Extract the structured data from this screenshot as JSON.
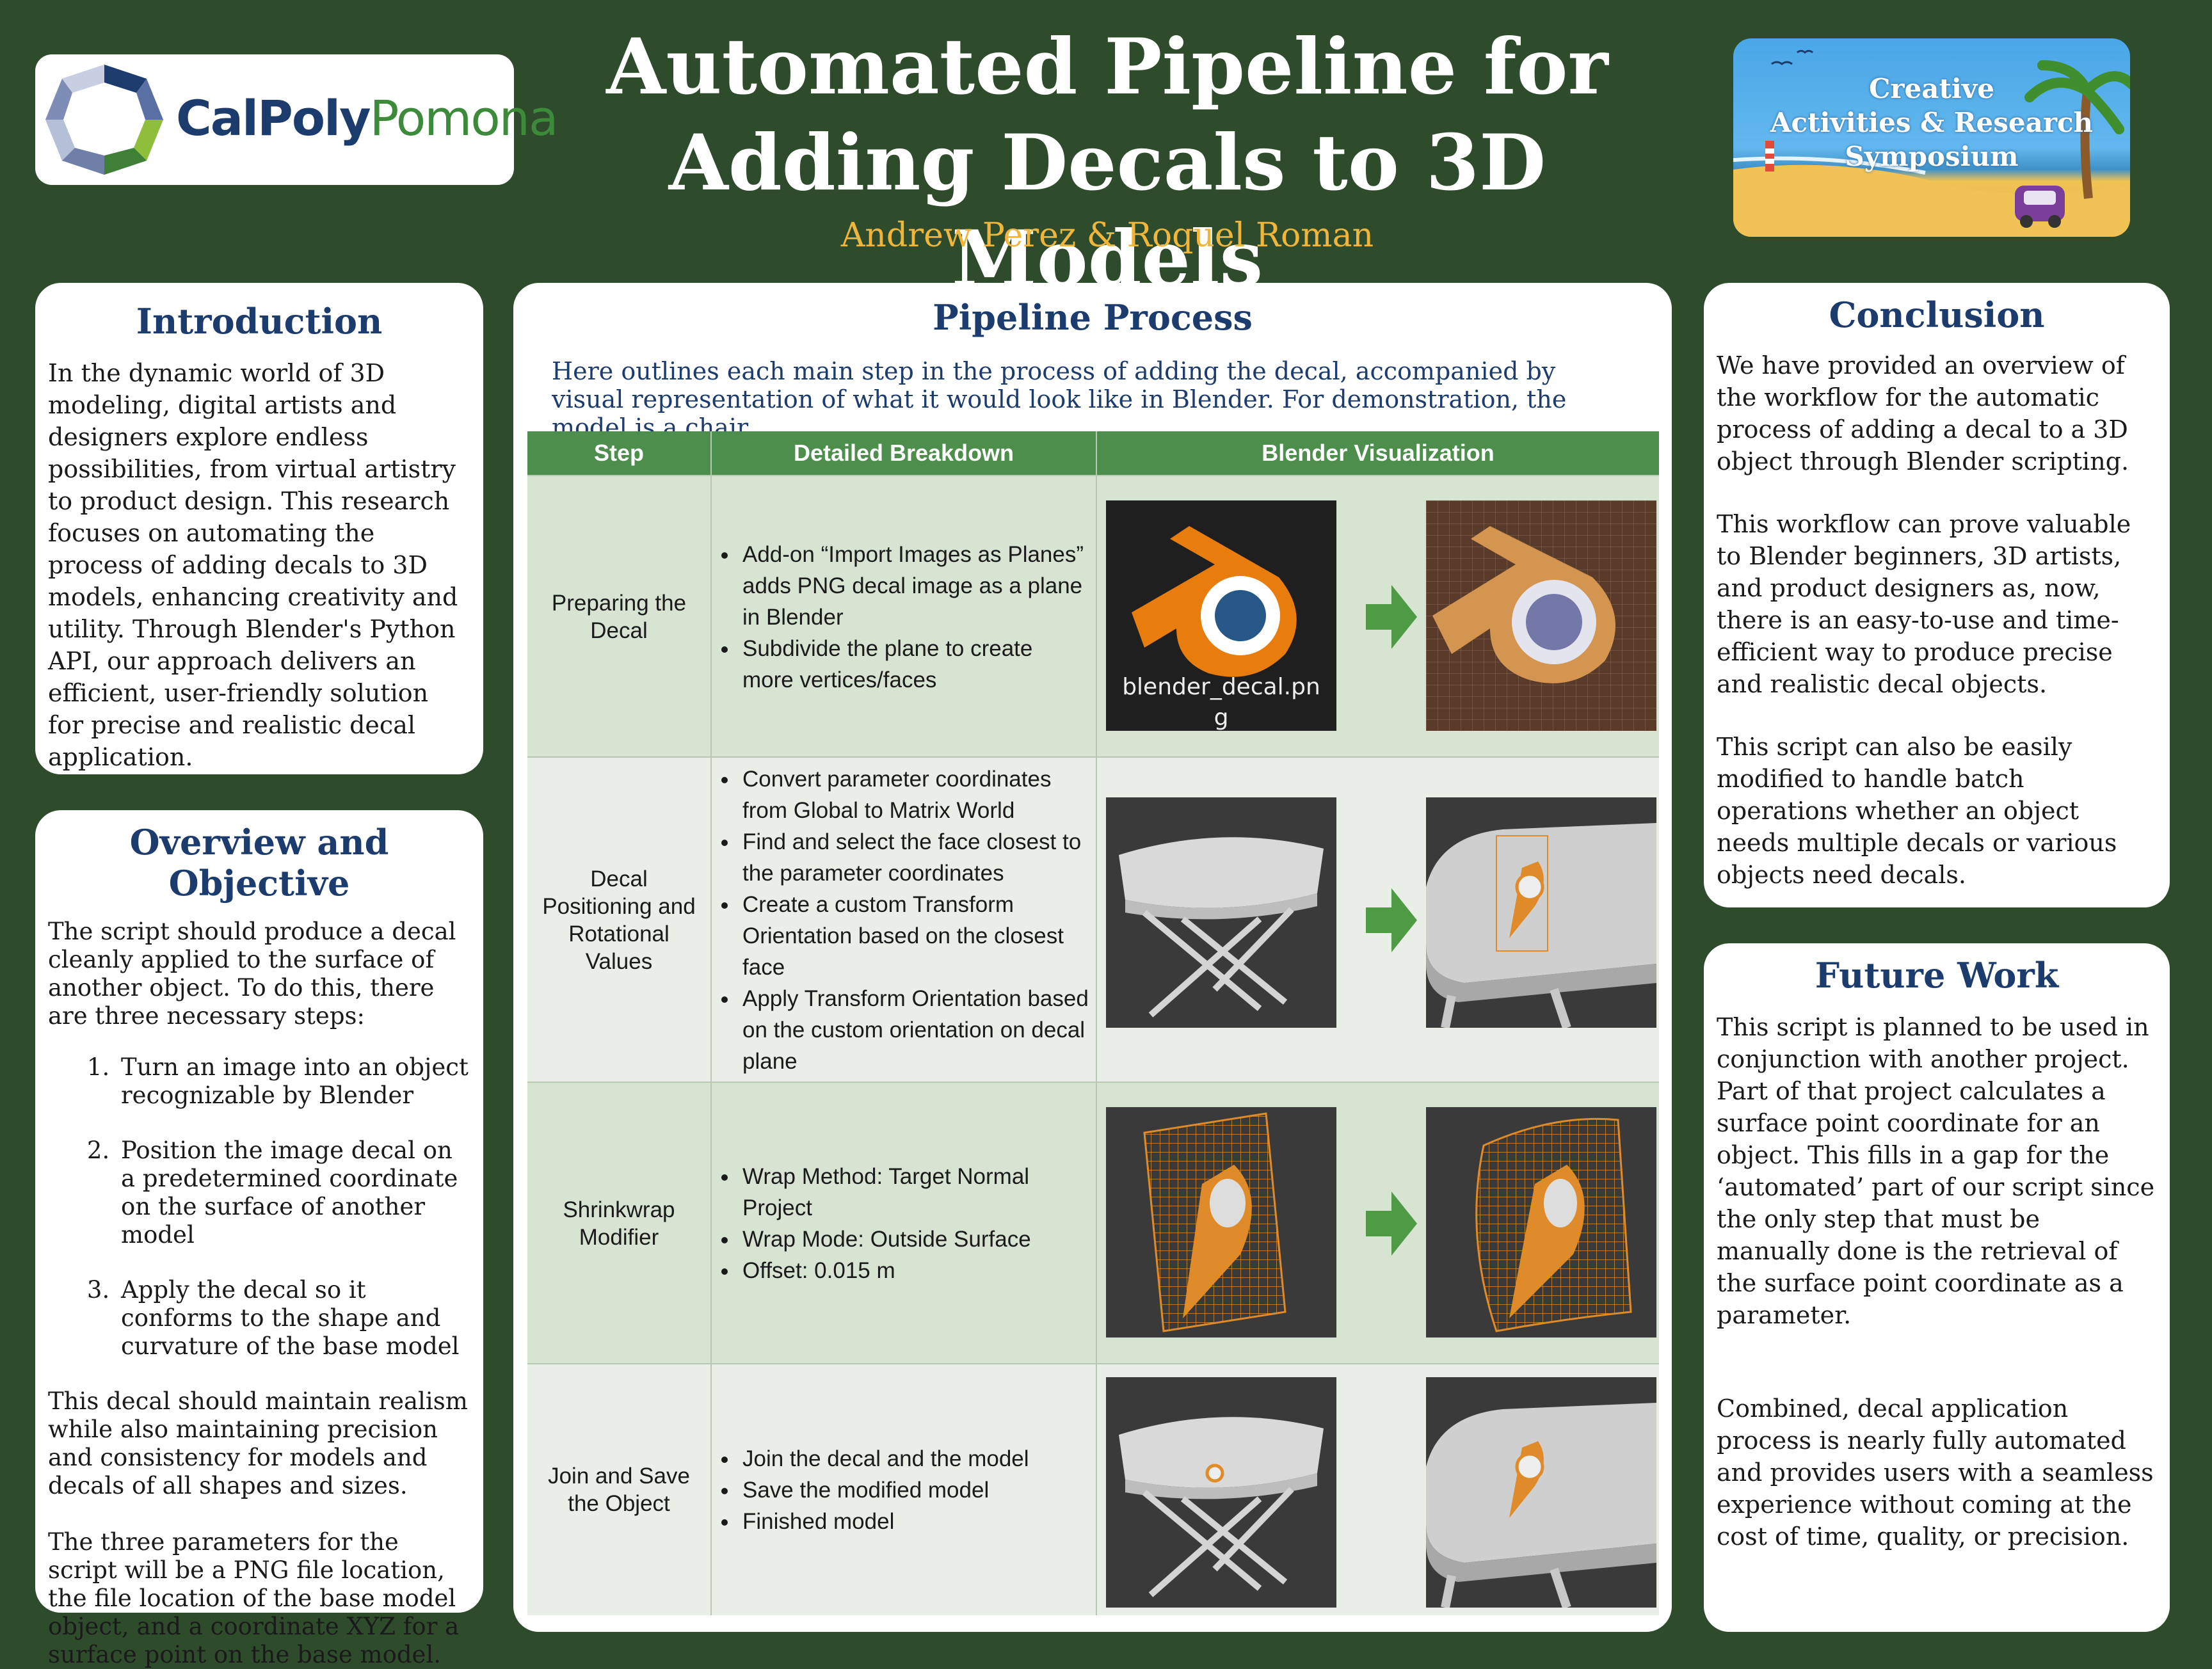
{
  "header": {
    "logo_left": {
      "part1": "CalPoly",
      "part2": "Pomona"
    },
    "title_line1": "Automated Pipeline for",
    "title_line2": "Adding Decals to 3D Models",
    "authors": "Andrew Perez & Roquel Roman",
    "logo_right": {
      "line1": "Creative",
      "line2": "Activities & Research",
      "line3": "Symposium"
    }
  },
  "introduction": {
    "heading": "Introduction",
    "body": "In the dynamic world of 3D modeling, digital artists and designers explore endless possibilities, from virtual artistry to product design. This research focuses on automating the process of adding decals to 3D models, enhancing creativity and utility. Through Blender's Python API, our approach delivers an efficient, user-friendly solution for precise and realistic decal application."
  },
  "overview": {
    "heading": "Overview and Objective",
    "intro": "The script should produce a decal cleanly applied to the surface of another object. To do this, there are three necessary steps:",
    "steps": [
      "Turn an image into an object recognizable by Blender",
      "Position the image decal on a predetermined coordinate on the surface of another model",
      "Apply the decal so it conforms to the shape and curvature of the base model"
    ],
    "para2": "This decal should maintain realism while also maintaining precision and consistency for models and decals of all shapes and sizes.",
    "para3": "The three parameters for the script will be a PNG file location, the file location of the base model object, and a coordinate XYZ for a surface point on the base model."
  },
  "pipeline": {
    "heading": "Pipeline Process",
    "intro": "Here outlines each main step in the process of adding the decal, accompanied by visual representation of what it would look like in Blender. For demonstration, the model is a chair.",
    "table": {
      "headers": [
        "Step",
        "Detailed Breakdown",
        "Blender Visualization"
      ],
      "rows": [
        {
          "step": "Preparing the Decal",
          "bullets": [
            "Add-on “Import Images as Planes” adds PNG decal image as a plane in Blender",
            "Subdivide the plane to create more vertices/faces"
          ],
          "caption": "blender_decal.png"
        },
        {
          "step": "Decal Positioning and Rotational Values",
          "bullets": [
            "Convert parameter coordinates from Global to Matrix World",
            "Find and select the face closest to the parameter coordinates",
            "Create a custom Transform Orientation based on the closest face",
            "Apply Transform Orientation based on the custom orientation on decal plane"
          ]
        },
        {
          "step": "Shrinkwrap Modifier",
          "bullets": [
            "Wrap Method: Target Normal Project",
            "Wrap Mode: Outside Surface",
            "Offset: 0.015 m"
          ]
        },
        {
          "step": "Join and Save the Object",
          "bullets": [
            "Join the decal and the model",
            "Save the modified model",
            "Finished model"
          ]
        }
      ]
    }
  },
  "conclusion": {
    "heading": "Conclusion",
    "paragraphs": [
      "We have provided an overview of the workflow for the automatic process of adding a decal to a 3D object through Blender scripting.",
      "This workflow can prove valuable to Blender beginners, 3D artists, and product designers as, now, there is an easy-to-use and time-efficient way to produce precise and realistic decal objects.",
      "This script can also be easily modified to handle batch operations whether an object needs multiple decals or various objects need decals."
    ]
  },
  "future_work": {
    "heading": "Future Work",
    "para1": "This script is planned to be used in conjunction with another project. Part of that project calculates a surface point coordinate for an object. This fills in a gap for the ‘automated’ part of our script since the only step that must be manually done is the retrieval of the surface point coordinate as a parameter.",
    "para2": "Combined, decal application process is nearly fully automated and provides users with a seamless experience without coming at the cost of time, quality, or precision."
  },
  "colors": {
    "background": "#2e4b2c",
    "heading": "#1d3c6e",
    "accent": "#f0b63b",
    "table_header": "#4d8e4d",
    "arrow": "#4f9a45"
  }
}
